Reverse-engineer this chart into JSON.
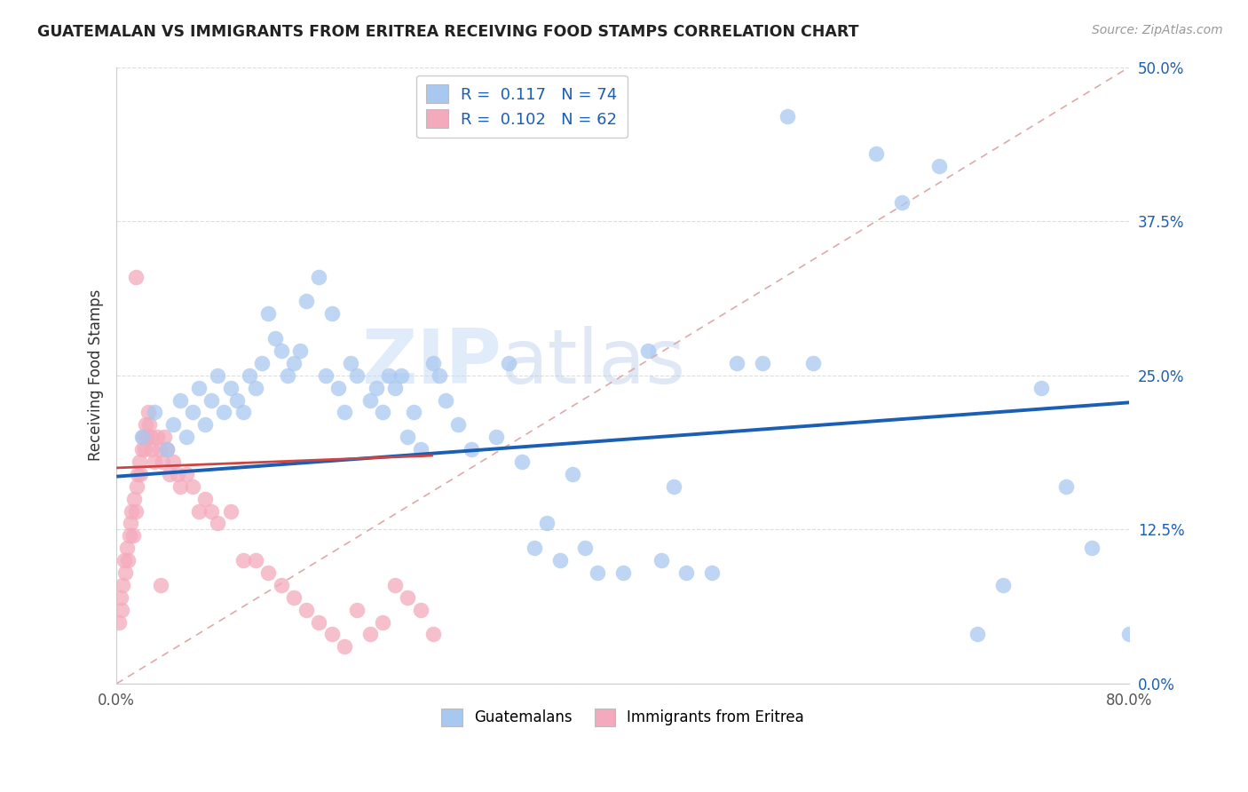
{
  "title": "GUATEMALAN VS IMMIGRANTS FROM ERITREA RECEIVING FOOD STAMPS CORRELATION CHART",
  "source": "Source: ZipAtlas.com",
  "ylabel": "Receiving Food Stamps",
  "watermark_zip": "ZIP",
  "watermark_atlas": "atlas",
  "r_blue": 0.117,
  "n_blue": 74,
  "r_pink": 0.102,
  "n_pink": 62,
  "blue_color": "#A8C8F0",
  "pink_color": "#F4AABC",
  "trendline_blue_color": "#1A5FB4",
  "trendline_pink_color": "#CC4444",
  "dashed_line_color": "#DDAAAA",
  "grid_color": "#DDDDDD",
  "ytick_color": "#1A5FB4",
  "xlim": [
    0.0,
    0.8
  ],
  "ylim": [
    0.0,
    0.5
  ],
  "ytick_vals": [
    0.0,
    0.125,
    0.25,
    0.375,
    0.5
  ],
  "ytick_labels": [
    "0.0%",
    "12.5%",
    "25.0%",
    "37.5%",
    "50.0%"
  ],
  "xtick_vals": [
    0.0,
    0.1,
    0.2,
    0.3,
    0.4,
    0.5,
    0.6,
    0.7,
    0.8
  ],
  "xtick_labels": [
    "0.0%",
    "",
    "",
    "",
    "",
    "",
    "",
    "",
    "80.0%"
  ],
  "blue_trendline_x0": 0.0,
  "blue_trendline_y0": 0.168,
  "blue_trendline_x1": 0.8,
  "blue_trendline_y1": 0.228,
  "pink_trendline_x0": 0.0,
  "pink_trendline_y0": 0.175,
  "pink_trendline_x1": 0.25,
  "pink_trendline_y1": 0.185,
  "blue_x": [
    0.02,
    0.03,
    0.04,
    0.045,
    0.05,
    0.055,
    0.06,
    0.065,
    0.07,
    0.075,
    0.08,
    0.085,
    0.09,
    0.095,
    0.1,
    0.105,
    0.11,
    0.115,
    0.12,
    0.125,
    0.13,
    0.135,
    0.14,
    0.145,
    0.15,
    0.16,
    0.165,
    0.17,
    0.175,
    0.18,
    0.185,
    0.19,
    0.2,
    0.205,
    0.21,
    0.215,
    0.22,
    0.225,
    0.23,
    0.235,
    0.24,
    0.25,
    0.255,
    0.26,
    0.27,
    0.28,
    0.3,
    0.31,
    0.32,
    0.33,
    0.34,
    0.35,
    0.36,
    0.37,
    0.38,
    0.4,
    0.42,
    0.43,
    0.44,
    0.45,
    0.47,
    0.49,
    0.51,
    0.53,
    0.55,
    0.6,
    0.62,
    0.65,
    0.68,
    0.7,
    0.73,
    0.75,
    0.77,
    0.8
  ],
  "blue_y": [
    0.2,
    0.22,
    0.19,
    0.21,
    0.23,
    0.2,
    0.22,
    0.24,
    0.21,
    0.23,
    0.25,
    0.22,
    0.24,
    0.23,
    0.22,
    0.25,
    0.24,
    0.26,
    0.3,
    0.28,
    0.27,
    0.25,
    0.26,
    0.27,
    0.31,
    0.33,
    0.25,
    0.3,
    0.24,
    0.22,
    0.26,
    0.25,
    0.23,
    0.24,
    0.22,
    0.25,
    0.24,
    0.25,
    0.2,
    0.22,
    0.19,
    0.26,
    0.25,
    0.23,
    0.21,
    0.19,
    0.2,
    0.26,
    0.18,
    0.11,
    0.13,
    0.1,
    0.17,
    0.11,
    0.09,
    0.09,
    0.27,
    0.1,
    0.16,
    0.09,
    0.09,
    0.26,
    0.26,
    0.46,
    0.26,
    0.43,
    0.39,
    0.42,
    0.04,
    0.08,
    0.24,
    0.16,
    0.11,
    0.04
  ],
  "pink_x": [
    0.002,
    0.003,
    0.004,
    0.005,
    0.006,
    0.007,
    0.008,
    0.009,
    0.01,
    0.011,
    0.012,
    0.013,
    0.014,
    0.015,
    0.016,
    0.017,
    0.018,
    0.019,
    0.02,
    0.021,
    0.022,
    0.023,
    0.024,
    0.025,
    0.026,
    0.027,
    0.028,
    0.03,
    0.032,
    0.034,
    0.036,
    0.038,
    0.04,
    0.042,
    0.045,
    0.048,
    0.05,
    0.055,
    0.06,
    0.065,
    0.07,
    0.075,
    0.08,
    0.09,
    0.1,
    0.11,
    0.12,
    0.13,
    0.14,
    0.15,
    0.16,
    0.17,
    0.18,
    0.19,
    0.2,
    0.21,
    0.22,
    0.23,
    0.24,
    0.25,
    0.035,
    0.015
  ],
  "pink_y": [
    0.05,
    0.07,
    0.06,
    0.08,
    0.1,
    0.09,
    0.11,
    0.1,
    0.12,
    0.13,
    0.14,
    0.12,
    0.15,
    0.14,
    0.16,
    0.17,
    0.18,
    0.17,
    0.19,
    0.2,
    0.19,
    0.21,
    0.2,
    0.22,
    0.21,
    0.2,
    0.19,
    0.18,
    0.2,
    0.19,
    0.18,
    0.2,
    0.19,
    0.17,
    0.18,
    0.17,
    0.16,
    0.17,
    0.16,
    0.14,
    0.15,
    0.14,
    0.13,
    0.14,
    0.1,
    0.1,
    0.09,
    0.08,
    0.07,
    0.06,
    0.05,
    0.04,
    0.03,
    0.06,
    0.04,
    0.05,
    0.08,
    0.07,
    0.06,
    0.04,
    0.08,
    0.33
  ]
}
